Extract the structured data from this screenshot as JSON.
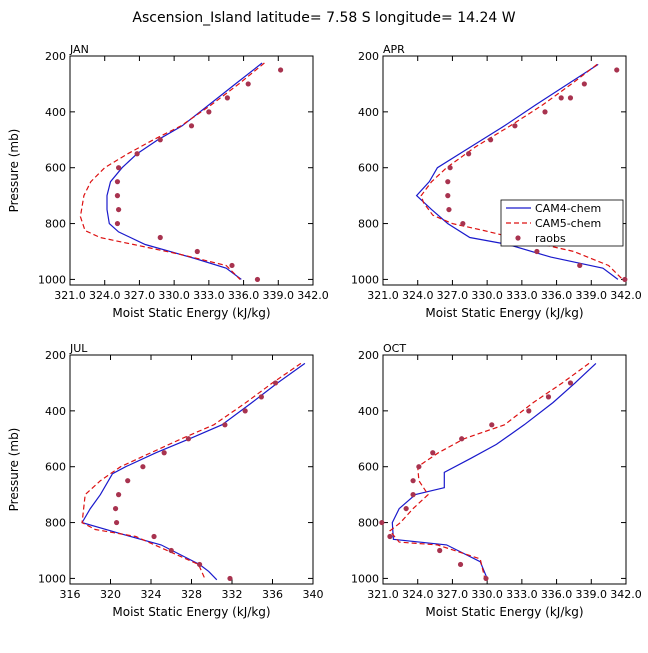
{
  "title": "Ascension_Island  latitude= 7.58 S longitude= 14.24 W",
  "colors": {
    "cam4": "#1a1acc",
    "cam5": "#dd1111",
    "raobs": "#a8334f"
  },
  "legend": {
    "entries": [
      "CAM4-chem",
      "CAM5-chem",
      "raobs"
    ],
    "panel": "APR",
    "placement": "lower-right"
  },
  "chart_data": [
    {
      "type": "line",
      "panel_label": "JAN",
      "xlabel": "Moist Static Energy (kJ/kg)",
      "ylabel": "Pressure (mb)",
      "xlim": [
        321.0,
        342.0
      ],
      "x_ticks": [
        321.0,
        324.0,
        327.0,
        330.0,
        333.0,
        336.0,
        339.0,
        342.0
      ],
      "x_tick_labels": [
        "321.0",
        "324.0",
        "327.0",
        "330.0",
        "333.0",
        "336.0",
        "339.0",
        "342.0"
      ],
      "ylim": [
        1020,
        200
      ],
      "y_ticks": [
        200,
        400,
        600,
        800,
        1000
      ],
      "y_tick_labels": [
        "200",
        "400",
        "600",
        "800",
        "1000"
      ],
      "series": [
        {
          "name": "CAM4-chem",
          "style": "solid",
          "x": [
            337.6,
            335.3,
            333.0,
            330.7,
            328.6,
            326.8,
            325.5,
            324.5,
            324.2,
            324.2,
            324.4,
            325.2,
            327.5,
            331.8,
            334.5,
            335.8
          ],
          "y": [
            225,
            300,
            375,
            450,
            500,
            550,
            600,
            650,
            700,
            750,
            800,
            830,
            875,
            925,
            960,
            1000
          ]
        },
        {
          "name": "CAM5-chem",
          "style": "dashed",
          "x": [
            337.8,
            335.6,
            333.2,
            330.6,
            328.2,
            326.0,
            324.0,
            322.8,
            322.2,
            321.9,
            322.3,
            323.6,
            326.5,
            330.5,
            334.5,
            335.7
          ],
          "y": [
            225,
            300,
            375,
            450,
            500,
            550,
            600,
            650,
            700,
            775,
            825,
            850,
            875,
            910,
            950,
            1000
          ]
        },
        {
          "name": "raobs",
          "style": "markers",
          "x": [
            339.2,
            336.4,
            334.6,
            333.0,
            331.5,
            328.8,
            326.8,
            325.2,
            325.1,
            325.1,
            325.2,
            325.1,
            328.8,
            332.0,
            335.0,
            337.2
          ],
          "y": [
            250,
            300,
            350,
            400,
            450,
            500,
            550,
            600,
            650,
            700,
            750,
            800,
            850,
            900,
            950,
            1000
          ]
        }
      ]
    },
    {
      "type": "line",
      "panel_label": "APR",
      "xlabel": "Moist Static Energy (kJ/kg)",
      "ylabel": "",
      "xlim": [
        321.0,
        342.0
      ],
      "x_ticks": [
        321.0,
        324.0,
        327.0,
        330.0,
        333.0,
        336.0,
        339.0,
        342.0
      ],
      "x_tick_labels": [
        "321.0",
        "324.0",
        "327.0",
        "330.0",
        "333.0",
        "336.0",
        "339.0",
        "342.0"
      ],
      "ylim": [
        1020,
        200
      ],
      "y_ticks": [
        200,
        400,
        600,
        800,
        1000
      ],
      "y_tick_labels": [
        "200",
        "400",
        "600",
        "800",
        "1000"
      ],
      "series": [
        {
          "name": "CAM4-chem",
          "style": "solid",
          "x": [
            339.6,
            337.0,
            334.2,
            331.5,
            328.6,
            325.7,
            325.0,
            323.9,
            325.2,
            326.6,
            328.5,
            331.8,
            335.5,
            340.0,
            341.3
          ],
          "y": [
            230,
            300,
            375,
            450,
            525,
            600,
            650,
            700,
            750,
            800,
            850,
            875,
            920,
            960,
            1000
          ]
        },
        {
          "name": "CAM5-chem",
          "style": "dashed",
          "x": [
            339.5,
            337.3,
            334.8,
            332.0,
            329.0,
            326.5,
            325.2,
            324.3,
            324.5,
            325.3,
            327.0,
            329.7,
            333.2,
            337.5,
            340.5,
            341.7
          ],
          "y": [
            230,
            300,
            375,
            450,
            525,
            600,
            650,
            700,
            725,
            770,
            800,
            825,
            860,
            900,
            950,
            1000
          ]
        },
        {
          "name": "raobs",
          "style": "markers",
          "x": [
            341.2,
            338.4,
            337.2,
            336.4,
            335.0,
            332.4,
            330.3,
            328.4,
            326.8,
            326.6,
            326.6,
            326.7,
            327.9,
            331.6,
            334.3,
            338.0,
            341.9
          ],
          "y": [
            250,
            300,
            350,
            350,
            400,
            450,
            500,
            550,
            600,
            650,
            700,
            750,
            800,
            850,
            900,
            950,
            1000
          ]
        }
      ]
    },
    {
      "type": "line",
      "panel_label": "JUL",
      "xlabel": "Moist Static Energy (kJ/kg)",
      "ylabel": "Pressure (mb)",
      "xlim": [
        316,
        340
      ],
      "x_ticks": [
        316,
        320,
        324,
        328,
        332,
        336,
        340
      ],
      "x_tick_labels": [
        "316",
        "320",
        "324",
        "328",
        "332",
        "336",
        "340"
      ],
      "ylim": [
        1020,
        200
      ],
      "y_ticks": [
        200,
        400,
        600,
        800,
        1000
      ],
      "y_tick_labels": [
        "200",
        "400",
        "600",
        "800",
        "1000"
      ],
      "series": [
        {
          "name": "CAM4-chem",
          "style": "solid",
          "x": [
            339.2,
            336.5,
            333.8,
            331.0,
            327.8,
            324.5,
            321.5,
            320.2,
            319.0,
            318.0,
            317.2,
            321.0,
            325.0,
            328.8,
            329.7,
            330.5
          ],
          "y": [
            230,
            300,
            375,
            450,
            500,
            550,
            600,
            625,
            700,
            750,
            800,
            840,
            880,
            950,
            975,
            1005
          ]
        },
        {
          "name": "CAM5-chem",
          "style": "dashed",
          "x": [
            338.8,
            336.0,
            333.2,
            330.2,
            327.0,
            324.0,
            321.0,
            320.0,
            319.0,
            317.5,
            317.2,
            318.5,
            322.5,
            328.7,
            329.3
          ],
          "y": [
            230,
            300,
            375,
            450,
            500,
            550,
            600,
            625,
            650,
            700,
            800,
            825,
            850,
            950,
            1000
          ]
        },
        {
          "name": "raobs",
          "style": "markers",
          "x": [
            336.3,
            334.9,
            333.3,
            331.3,
            327.7,
            325.3,
            323.2,
            321.7,
            320.8,
            320.5,
            320.6,
            324.3,
            326.0,
            328.8,
            331.8
          ],
          "y": [
            300,
            350,
            400,
            450,
            500,
            550,
            600,
            650,
            700,
            750,
            800,
            850,
            900,
            950,
            1000
          ]
        }
      ]
    },
    {
      "type": "line",
      "panel_label": "OCT",
      "xlabel": "Moist Static Energy (kJ/kg)",
      "ylabel": "",
      "xlim": [
        321.0,
        342.0
      ],
      "x_ticks": [
        321.0,
        324.0,
        327.0,
        330.0,
        333.0,
        336.0,
        339.0,
        342.0
      ],
      "x_tick_labels": [
        "321.0",
        "324.0",
        "327.0",
        "330.0",
        "333.0",
        "336.0",
        "339.0",
        "342.0"
      ],
      "ylim": [
        1020,
        200
      ],
      "y_ticks": [
        200,
        400,
        600,
        800,
        1000
      ],
      "y_tick_labels": [
        "200",
        "400",
        "600",
        "800",
        "1000"
      ],
      "series": [
        {
          "name": "CAM4-chem",
          "style": "solid",
          "x": [
            339.4,
            337.6,
            335.7,
            333.2,
            330.8,
            328.6,
            326.3,
            326.3,
            323.8,
            322.4,
            321.8,
            321.9,
            326.5,
            329.4,
            330.0
          ],
          "y": [
            230,
            300,
            370,
            450,
            520,
            570,
            620,
            675,
            700,
            750,
            800,
            860,
            880,
            940,
            1000
          ]
        },
        {
          "name": "CAM5-chem",
          "style": "dashed",
          "x": [
            338.8,
            336.5,
            334.0,
            331.5,
            328.0,
            325.8,
            324.0,
            324.1,
            324.9,
            323.6,
            322.5,
            321.6,
            322.4,
            325.7,
            329.4,
            329.8
          ],
          "y": [
            230,
            300,
            370,
            450,
            500,
            550,
            600,
            650,
            700,
            750,
            800,
            830,
            870,
            880,
            930,
            1000
          ]
        },
        {
          "name": "raobs",
          "style": "markers",
          "x": [
            337.2,
            335.3,
            333.6,
            330.4,
            327.8,
            325.3,
            324.1,
            323.6,
            323.6,
            323.0,
            320.9,
            321.6,
            325.9,
            327.7,
            329.9
          ],
          "y": [
            300,
            350,
            400,
            450,
            500,
            550,
            600,
            650,
            700,
            750,
            800,
            850,
            900,
            950,
            1000
          ]
        }
      ]
    }
  ]
}
